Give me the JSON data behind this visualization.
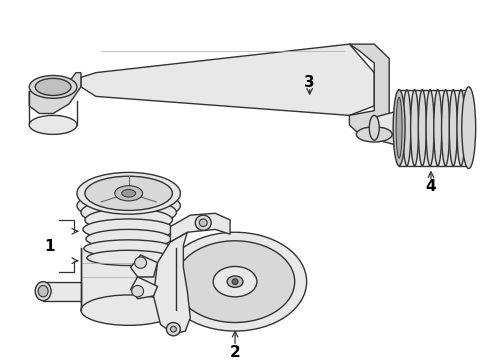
{
  "background_color": "#ffffff",
  "line_color": "#333333",
  "fill_light": "#e8e8e8",
  "fill_mid": "#d8d8d8",
  "fill_dark": "#c0c0c0",
  "label_color": "#000000",
  "label_fontsize": 11,
  "fig_width": 4.9,
  "fig_height": 3.6,
  "dpi": 100
}
